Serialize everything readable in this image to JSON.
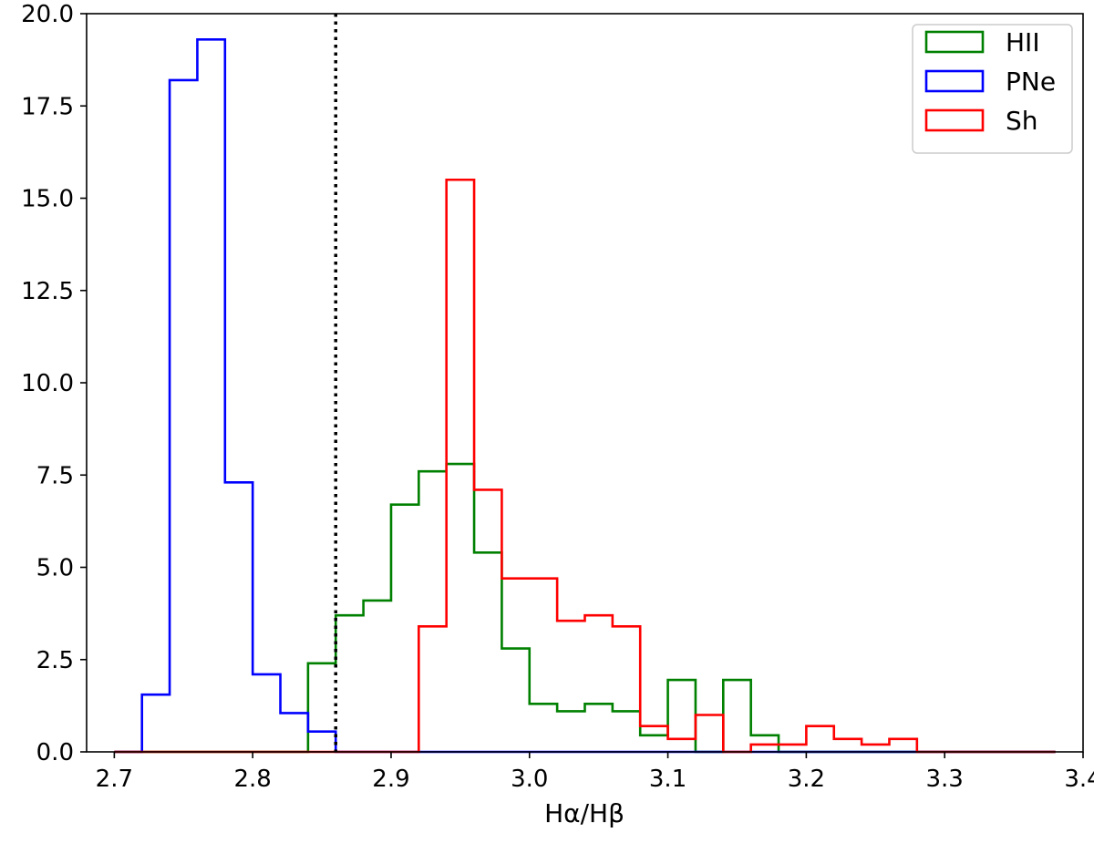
{
  "chart_data": {
    "type": "histogram",
    "xlabel": "Hα/Hβ",
    "ylabel": "",
    "xlim": [
      2.68,
      3.4
    ],
    "ylim": [
      0,
      20.0
    ],
    "x_ticks": [
      "2.7",
      "2.8",
      "2.9",
      "3.0",
      "3.1",
      "3.2",
      "3.3",
      "3.4"
    ],
    "y_ticks": [
      "0.0",
      "2.5",
      "5.0",
      "7.5",
      "10.0",
      "12.5",
      "15.0",
      "17.5",
      "20.0"
    ],
    "grid": false,
    "legend_position": "top-right",
    "bin_edges": [
      2.7,
      2.72,
      2.74,
      2.76,
      2.78,
      2.8,
      2.82,
      2.84,
      2.86,
      2.88,
      2.9,
      2.92,
      2.94,
      2.96,
      2.98,
      3.0,
      3.02,
      3.04,
      3.06,
      3.08,
      3.1,
      3.12,
      3.14,
      3.16,
      3.18,
      3.2,
      3.22,
      3.24,
      3.26,
      3.28,
      3.3,
      3.32,
      3.34,
      3.36,
      3.38
    ],
    "series": [
      {
        "name": "HII",
        "color": "#008000",
        "values": [
          0,
          0,
          0,
          0,
          0,
          0,
          0,
          2.4,
          3.7,
          4.1,
          6.7,
          7.6,
          7.8,
          5.4,
          2.8,
          1.3,
          1.1,
          1.3,
          1.1,
          0.45,
          1.95,
          0,
          1.95,
          0.45,
          0,
          0,
          0,
          0,
          0,
          0,
          0,
          0,
          0,
          0
        ]
      },
      {
        "name": "PNe",
        "color": "#0000ff",
        "values": [
          0,
          1.55,
          18.2,
          19.3,
          7.3,
          2.1,
          1.05,
          0.55,
          0,
          0,
          0,
          0,
          0,
          0,
          0,
          0,
          0,
          0,
          0,
          0,
          0,
          0,
          0,
          0,
          0,
          0,
          0,
          0,
          0,
          0,
          0,
          0,
          0,
          0
        ]
      },
      {
        "name": "Sh",
        "color": "#ff0000",
        "values": [
          0,
          0,
          0,
          0,
          0,
          0,
          0,
          0,
          0,
          0,
          0,
          3.4,
          15.5,
          7.1,
          4.7,
          4.7,
          3.55,
          3.7,
          3.4,
          0.7,
          0.35,
          1.0,
          0,
          0.2,
          0.2,
          0.7,
          0.35,
          0.2,
          0.35,
          0,
          0,
          0,
          0,
          0
        ]
      }
    ],
    "reference_line": {
      "x": 2.86,
      "style": "dotted",
      "color": "#000000"
    }
  }
}
